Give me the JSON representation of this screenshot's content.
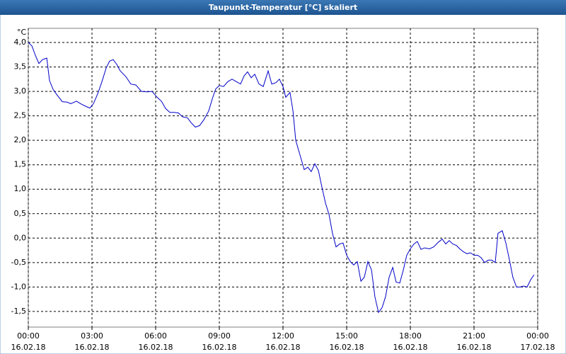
{
  "chart_data": {
    "type": "line",
    "title": "Taupunkt-Temperatur [°C] skaliert",
    "y_unit": "°C",
    "x": [
      0,
      0.17,
      0.33,
      0.5,
      0.67,
      0.87,
      1.0,
      1.17,
      1.33,
      1.6,
      1.83,
      2.0,
      2.27,
      2.5,
      2.73,
      2.9,
      3.07,
      3.27,
      3.47,
      3.67,
      3.83,
      4.0,
      4.17,
      4.33,
      4.6,
      4.83,
      5.07,
      5.33,
      5.6,
      5.83,
      6.07,
      6.27,
      6.47,
      6.67,
      6.87,
      7.07,
      7.27,
      7.5,
      7.67,
      7.87,
      8.07,
      8.27,
      8.5,
      8.67,
      8.83,
      9.0,
      9.2,
      9.4,
      9.6,
      9.8,
      10.0,
      10.17,
      10.33,
      10.5,
      10.67,
      10.87,
      11.07,
      11.3,
      11.47,
      11.67,
      11.83,
      12.0,
      12.13,
      12.33,
      12.47,
      12.6,
      12.8,
      13.0,
      13.17,
      13.33,
      13.5,
      13.67,
      13.83,
      14.0,
      14.17,
      14.33,
      14.5,
      14.67,
      14.83,
      15.0,
      15.17,
      15.33,
      15.5,
      15.67,
      15.83,
      16.0,
      16.17,
      16.33,
      16.5,
      16.67,
      16.83,
      17.0,
      17.17,
      17.33,
      17.5,
      17.67,
      17.83,
      18.0,
      18.17,
      18.33,
      18.5,
      18.67,
      18.9,
      19.1,
      19.33,
      19.5,
      19.67,
      19.83,
      20.0,
      20.17,
      20.33,
      20.5,
      20.67,
      20.83,
      21.0,
      21.17,
      21.33,
      21.5,
      21.67,
      21.83,
      22.0,
      22.13,
      22.33,
      22.5,
      22.67,
      22.83,
      23.0,
      23.17,
      23.33,
      23.5,
      23.67,
      23.83
    ],
    "series": [
      {
        "name": "Taupunkt-Temperatur",
        "color": "#0000c8",
        "values": [
          4.0,
          3.93,
          3.74,
          3.57,
          3.65,
          3.68,
          3.22,
          3.04,
          2.94,
          2.79,
          2.78,
          2.75,
          2.8,
          2.74,
          2.69,
          2.66,
          2.75,
          2.95,
          3.2,
          3.48,
          3.62,
          3.65,
          3.55,
          3.42,
          3.3,
          3.15,
          3.13,
          3.0,
          2.99,
          3.0,
          2.88,
          2.8,
          2.65,
          2.57,
          2.57,
          2.56,
          2.48,
          2.46,
          2.36,
          2.27,
          2.3,
          2.42,
          2.6,
          2.85,
          3.05,
          3.12,
          3.1,
          3.2,
          3.25,
          3.2,
          3.15,
          3.32,
          3.4,
          3.28,
          3.35,
          3.15,
          3.1,
          3.42,
          3.15,
          3.18,
          3.25,
          3.1,
          2.88,
          2.98,
          2.6,
          2.0,
          1.7,
          1.4,
          1.45,
          1.36,
          1.52,
          1.38,
          1.05,
          0.72,
          0.48,
          0.1,
          -0.18,
          -0.12,
          -0.1,
          -0.35,
          -0.48,
          -0.55,
          -0.48,
          -0.88,
          -0.8,
          -0.48,
          -0.65,
          -1.2,
          -1.52,
          -1.42,
          -1.2,
          -0.8,
          -0.6,
          -0.9,
          -0.92,
          -0.65,
          -0.35,
          -0.22,
          -0.12,
          -0.07,
          -0.23,
          -0.2,
          -0.22,
          -0.18,
          -0.08,
          -0.02,
          -0.12,
          -0.05,
          -0.12,
          -0.15,
          -0.22,
          -0.28,
          -0.32,
          -0.3,
          -0.35,
          -0.35,
          -0.4,
          -0.5,
          -0.45,
          -0.45,
          -0.5,
          0.1,
          0.15,
          -0.1,
          -0.45,
          -0.8,
          -1.0,
          -1.0,
          -0.98,
          -1.0,
          -0.85,
          -0.75
        ]
      }
    ],
    "xlim": [
      0,
      24
    ],
    "xticks": [
      {
        "value": 0,
        "label": "00:00"
      },
      {
        "value": 3,
        "label": "03:00"
      },
      {
        "value": 6,
        "label": "06:00"
      },
      {
        "value": 9,
        "label": "09:00"
      },
      {
        "value": 12,
        "label": "12:00"
      },
      {
        "value": 15,
        "label": "15:00"
      },
      {
        "value": 18,
        "label": "18:00"
      },
      {
        "value": 21,
        "label": "21:00"
      },
      {
        "value": 24,
        "label": "00:00"
      }
    ],
    "xtick_dates": [
      "16.02.18",
      "16.02.18",
      "16.02.18",
      "16.02.18",
      "16.02.18",
      "16.02.18",
      "16.02.18",
      "16.02.18",
      "17.02.18"
    ],
    "ylim": [
      -1.82,
      4.29
    ],
    "yticks": [
      {
        "value": -1.5,
        "label": "-1,5"
      },
      {
        "value": -1.0,
        "label": "-1,0"
      },
      {
        "value": -0.5,
        "label": "-0,5"
      },
      {
        "value": 0,
        "label": "0,0"
      },
      {
        "value": 0.5,
        "label": "0,5"
      },
      {
        "value": 1.0,
        "label": "1,0"
      },
      {
        "value": 1.5,
        "label": "1,5"
      },
      {
        "value": 2.0,
        "label": "2,0"
      },
      {
        "value": 2.5,
        "label": "2,5"
      },
      {
        "value": 3.0,
        "label": "3,0"
      },
      {
        "value": 3.5,
        "label": "3,5"
      },
      {
        "value": 4.0,
        "label": "4,0"
      }
    ],
    "grid": true
  }
}
